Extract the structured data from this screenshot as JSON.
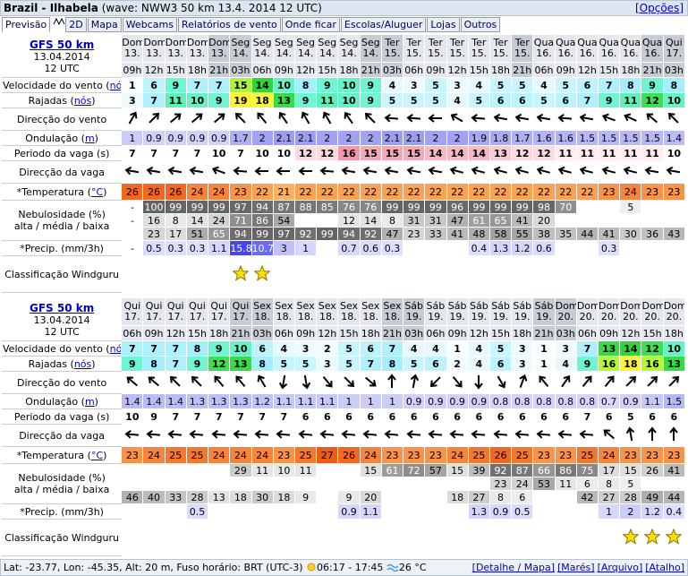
{
  "header": {
    "location": "Brazil - Ilhabela",
    "info": "(wave: NWW3 50 km 13.4. 2014 12 UTC)",
    "options": "[Opções]"
  },
  "tabs": [
    "Previsão",
    "2D",
    "Mapa",
    "Webcams",
    "Relatórios de vento",
    "Onde ficar",
    "Escolas/Aluguer",
    "Lojas",
    "Outros"
  ],
  "labels": {
    "speed": {
      "pre": "Velocidade do vento (",
      "link": "nós",
      "post": ")"
    },
    "gusts": {
      "pre": "Rajadas (",
      "link": "nós",
      "post": ")"
    },
    "wind_dir": "Direcção do vento",
    "swell": {
      "pre": "Ondulação (",
      "link": "m",
      "post": ")"
    },
    "period": "Periodo da vaga (s)",
    "wave_dir": "Direcção da vaga",
    "temp": {
      "pre": "*Temperatura (",
      "link": "°C",
      "post": ")"
    },
    "clouds": [
      "Nebulosidade (%)",
      "alta / média / baixa"
    ],
    "precip": "*Precip. (mm/3h)",
    "rating": "Classificação Windguru"
  },
  "forecasts": [
    {
      "model": "GFS 50 km",
      "date": "13.04.2014",
      "run": "12 UTC",
      "days": [
        "Dom",
        "Dom",
        "Dom",
        "Dom",
        "Dom",
        "Seg",
        "Seg",
        "Seg",
        "Seg",
        "Seg",
        "Seg",
        "Seg",
        "Ter",
        "Ter",
        "Ter",
        "Ter",
        "Ter",
        "Ter",
        "Ter",
        "Qua",
        "Qua",
        "Qua",
        "Qua",
        "Qua",
        "Qua",
        "Qui"
      ],
      "dates": [
        "13.",
        "13.",
        "13.",
        "13.",
        "13.",
        "14.",
        "14.",
        "14.",
        "14.",
        "14.",
        "14.",
        "14.",
        "15.",
        "15.",
        "15.",
        "15.",
        "15.",
        "15.",
        "15.",
        "16.",
        "16.",
        "16.",
        "16.",
        "16.",
        "16.",
        "17."
      ],
      "hours": [
        "09h",
        "12h",
        "15h",
        "18h",
        "21h",
        "03h",
        "06h",
        "09h",
        "12h",
        "15h",
        "18h",
        "21h",
        "03h",
        "06h",
        "09h",
        "12h",
        "15h",
        "18h",
        "21h",
        "06h",
        "09h",
        "12h",
        "15h",
        "18h",
        "21h",
        "03h"
      ],
      "speed": [
        1,
        6,
        9,
        7,
        7,
        15,
        14,
        10,
        8,
        9,
        10,
        9,
        4,
        3,
        5,
        3,
        4,
        5,
        5,
        4,
        5,
        6,
        7,
        8,
        9,
        8
      ],
      "gusts": [
        3,
        7,
        11,
        10,
        9,
        19,
        18,
        13,
        9,
        11,
        10,
        9,
        5,
        5,
        5,
        4,
        5,
        6,
        6,
        5,
        6,
        7,
        9,
        11,
        12,
        10
      ],
      "wind_dir": [
        210,
        225,
        230,
        230,
        230,
        135,
        140,
        145,
        150,
        150,
        145,
        135,
        95,
        95,
        90,
        120,
        95,
        100,
        100,
        100,
        95,
        100,
        110,
        115,
        130,
        135
      ],
      "swell": [
        1,
        0.9,
        0.9,
        0.9,
        0.9,
        1.7,
        2,
        2.1,
        2.1,
        2,
        2,
        2,
        2.1,
        2.1,
        2,
        2,
        1.9,
        1.8,
        1.7,
        1.6,
        1.6,
        1.5,
        1.5,
        1.5,
        1.5,
        1.4
      ],
      "period": [
        7,
        7,
        7,
        7,
        10,
        7,
        10,
        10,
        12,
        12,
        16,
        15,
        15,
        15,
        14,
        14,
        14,
        13,
        12,
        12,
        11,
        11,
        11,
        11,
        11,
        10
      ],
      "wave_dir": [
        100,
        100,
        100,
        100,
        110,
        95,
        90,
        90,
        90,
        95,
        100,
        100,
        100,
        100,
        100,
        105,
        105,
        105,
        105,
        105,
        105,
        105,
        105,
        105,
        100,
        100
      ],
      "temp": [
        26,
        26,
        26,
        24,
        24,
        23,
        22,
        21,
        22,
        22,
        22,
        22,
        22,
        22,
        22,
        22,
        22,
        22,
        22,
        22,
        22,
        22,
        23,
        24,
        23,
        23
      ],
      "clouds_high": [
        "-",
        100,
        99,
        99,
        99,
        97,
        94,
        87,
        88,
        85,
        76,
        76,
        99,
        99,
        99,
        96,
        99,
        99,
        99,
        98,
        70,
        null,
        null,
        5,
        null,
        null
      ],
      "clouds_mid": [
        "-",
        16,
        8,
        14,
        24,
        71,
        86,
        54,
        null,
        null,
        12,
        14,
        8,
        31,
        31,
        47,
        61,
        65,
        41,
        20,
        null,
        null,
        null,
        null,
        null,
        null
      ],
      "clouds_low": [
        null,
        23,
        17,
        51,
        65,
        94,
        99,
        97,
        92,
        99,
        94,
        92,
        47,
        23,
        33,
        41,
        48,
        58,
        55,
        38,
        35,
        44,
        41,
        30,
        36,
        43
      ],
      "precip": [
        "-",
        0.5,
        0.3,
        0.3,
        1.1,
        15.8,
        10.7,
        3,
        1,
        null,
        0.7,
        0.6,
        0.3,
        null,
        null,
        null,
        0.4,
        1.3,
        1.2,
        0.6,
        null,
        null,
        0.3,
        null,
        null,
        null
      ],
      "rating": [
        null,
        null,
        null,
        null,
        null,
        1,
        1,
        null,
        null,
        null,
        null,
        null,
        null,
        null,
        null,
        null,
        null,
        null,
        null,
        null,
        null,
        null,
        null,
        null,
        null,
        null
      ]
    },
    {
      "model": "GFS 50 km",
      "date": "13.04.2014",
      "run": "12 UTC",
      "days": [
        "Qui",
        "Qui",
        "Qui",
        "Qui",
        "Qui",
        "Qui",
        "Sex",
        "Sex",
        "Sex",
        "Sex",
        "Sex",
        "Sex",
        "Sex",
        "Sáb",
        "Sáb",
        "Sáb",
        "Sáb",
        "Sáb",
        "Sáb",
        "Sáb",
        "Dom",
        "Dom",
        "Dom",
        "Dom",
        "Dom",
        "Dom"
      ],
      "dates": [
        "17.",
        "17.",
        "17.",
        "17.",
        "17.",
        "17.",
        "18.",
        "18.",
        "18.",
        "18.",
        "18.",
        "18.",
        "18.",
        "19.",
        "19.",
        "19.",
        "19.",
        "19.",
        "19.",
        "19.",
        "20.",
        "20.",
        "20.",
        "20.",
        "20.",
        "20."
      ],
      "hours": [
        "06h",
        "09h",
        "12h",
        "15h",
        "18h",
        "21h",
        "03h",
        "06h",
        "09h",
        "12h",
        "15h",
        "18h",
        "21h",
        "03h",
        "06h",
        "09h",
        "12h",
        "15h",
        "18h",
        "21h",
        "03h",
        "06h",
        "09h",
        "12h",
        "15h",
        "18h"
      ],
      "speed": [
        7,
        7,
        7,
        8,
        9,
        10,
        6,
        4,
        3,
        2,
        5,
        6,
        7,
        4,
        4,
        1,
        4,
        5,
        3,
        1,
        3,
        7,
        13,
        14,
        12,
        10
      ],
      "gusts": [
        9,
        8,
        7,
        9,
        12,
        13,
        8,
        5,
        5,
        3,
        5,
        7,
        8,
        5,
        6,
        2,
        4,
        6,
        3,
        1,
        4,
        9,
        16,
        18,
        16,
        13
      ],
      "wind_dir": [
        130,
        130,
        135,
        135,
        140,
        140,
        150,
        10,
        350,
        320,
        315,
        310,
        180,
        190,
        45,
        320,
        0,
        330,
        200,
        140,
        215,
        220,
        220,
        225,
        225,
        225
      ],
      "swell": [
        1.4,
        1.4,
        1.4,
        1.3,
        1.3,
        1.3,
        1.2,
        1.1,
        1.1,
        1.1,
        1,
        1,
        1,
        0.9,
        0.9,
        0.9,
        0.9,
        0.8,
        0.8,
        0.8,
        0.8,
        0.8,
        0.7,
        0.9,
        1.1,
        1.5
      ],
      "period": [
        10,
        9,
        7,
        7,
        7,
        7,
        7,
        7,
        6,
        6,
        6,
        6,
        6,
        6,
        6,
        6,
        6,
        6,
        6,
        6,
        6,
        7,
        6,
        5,
        6,
        6
      ],
      "wave_dir": [
        95,
        95,
        95,
        95,
        95,
        95,
        95,
        95,
        95,
        95,
        95,
        95,
        95,
        95,
        95,
        95,
        95,
        95,
        95,
        95,
        95,
        95,
        130,
        170,
        180,
        180
      ],
      "temp": [
        23,
        24,
        25,
        25,
        24,
        24,
        24,
        23,
        25,
        27,
        26,
        24,
        23,
        23,
        23,
        24,
        25,
        26,
        25,
        23,
        23,
        25,
        24,
        23,
        23,
        23
      ],
      "clouds_high": [
        null,
        null,
        null,
        null,
        null,
        29,
        11,
        10,
        11,
        null,
        null,
        15,
        61,
        72,
        57,
        15,
        39,
        92,
        87,
        66,
        86,
        75,
        17,
        15,
        26,
        41
      ],
      "clouds_mid": [
        null,
        null,
        null,
        null,
        null,
        null,
        null,
        null,
        null,
        null,
        null,
        null,
        null,
        null,
        null,
        null,
        null,
        23,
        24,
        53,
        11,
        6,
        8,
        5,
        null,
        null
      ],
      "clouds_low": [
        46,
        40,
        33,
        28,
        13,
        18,
        30,
        18,
        9,
        null,
        9,
        20,
        null,
        null,
        null,
        18,
        27,
        8,
        6,
        null,
        null,
        42,
        27,
        28,
        49,
        44
      ],
      "precip": [
        null,
        null,
        null,
        0.5,
        null,
        null,
        null,
        null,
        null,
        null,
        0.9,
        1.1,
        null,
        null,
        null,
        null,
        1.3,
        0.9,
        0.5,
        null,
        null,
        null,
        1,
        2,
        1.2,
        0.4
      ],
      "rating": [
        null,
        null,
        null,
        null,
        null,
        null,
        null,
        null,
        null,
        null,
        null,
        null,
        null,
        null,
        null,
        null,
        null,
        null,
        null,
        null,
        null,
        null,
        null,
        1,
        1,
        1
      ]
    }
  ],
  "footer": {
    "location": "Lat: -23.77, Lon: -45.35, Alt: 20 m, Fuso horário: BRT (UTC-3)",
    "sun": "06:17 - 17:45",
    "water": "26 °C",
    "links": [
      "[Detalhe / Mapa]",
      "[Marés]",
      "[Arquivo]",
      "[Atalho]"
    ]
  }
}
